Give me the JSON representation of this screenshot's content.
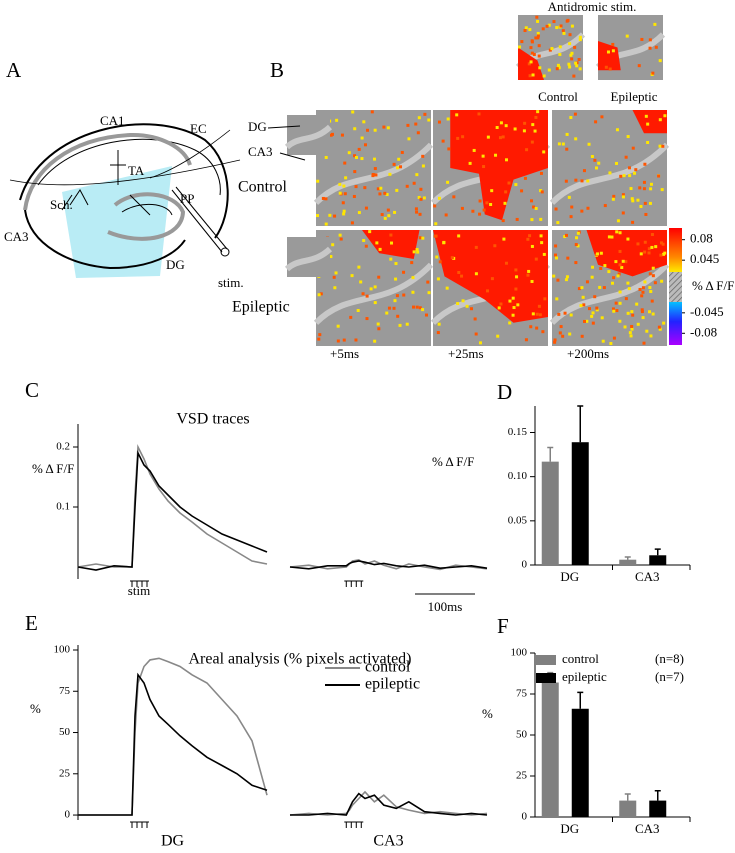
{
  "panel_labels": [
    "A",
    "B",
    "C",
    "D",
    "E",
    "F"
  ],
  "diagram": {
    "labels": [
      "CA1",
      "EC",
      "TA",
      "Sch.",
      "PP",
      "CA3",
      "DG",
      "stim."
    ]
  },
  "imaging": {
    "inset_title": "Antidromic stim.",
    "inset_labels": [
      "Control",
      "Epileptic"
    ],
    "row_labels": [
      "Control",
      "Epileptic"
    ],
    "region_labels": [
      "DG",
      "CA3"
    ],
    "time_labels": [
      "+5ms",
      "+25ms",
      "+200ms"
    ],
    "colorbar": {
      "label": "% Δ F/F",
      "clim": [
        -0.1,
        0.1
      ],
      "ticks": [
        0.08,
        0.045,
        -0.045,
        -0.08
      ]
    }
  },
  "chart_data": [
    {
      "type": "line",
      "title": "VSD traces",
      "ylabel": "% Δ F/F",
      "ylim": [
        -0.02,
        0.23
      ],
      "yticks": [
        0.1,
        0.2
      ],
      "x": [
        -90,
        -60,
        -30,
        0,
        5,
        10,
        20,
        30,
        45,
        60,
        80,
        100,
        125,
        150,
        175,
        200,
        225
      ],
      "xlim": [
        -90,
        225
      ],
      "groups": [
        {
          "series": [
            {
              "color": "#888888",
              "values": [
                0,
                0.005,
                0,
                0,
                0.12,
                0.2,
                0.18,
                0.155,
                0.13,
                0.11,
                0.09,
                0.075,
                0.055,
                0.04,
                0.025,
                0.01,
                0.005
              ]
            },
            {
              "color": "#000000",
              "values": [
                0,
                -0.005,
                0.002,
                0,
                0.1,
                0.19,
                0.17,
                0.16,
                0.135,
                0.12,
                0.1,
                0.085,
                0.07,
                0.055,
                0.045,
                0.035,
                0.025
              ]
            }
          ]
        },
        {
          "series": [
            {
              "color": "#888888",
              "values": [
                0,
                0.003,
                -0.003,
                0,
                0.005,
                0.01,
                0.012,
                0.005,
                0.01,
                0.003,
                -0.003,
                0.005,
                0,
                -0.004,
                0.003,
                0,
                -0.003
              ]
            },
            {
              "color": "#000000",
              "values": [
                0,
                -0.003,
                0.002,
                0.002,
                0.006,
                0.008,
                0.01,
                0.008,
                0.004,
                0.006,
                0.002,
                0,
                0.003,
                -0.002,
                0,
                0.002,
                -0.002
              ]
            }
          ]
        }
      ],
      "stim_label": "stim",
      "scalebar_label": "100ms"
    },
    {
      "type": "bar",
      "ylabel": "% Δ F/F",
      "categories": [
        "DG",
        "CA3"
      ],
      "ylim": [
        0,
        0.18
      ],
      "yticks": [
        0,
        0.05,
        {
          "value": 0.1,
          "label": "0.10"
        },
        0.15
      ],
      "series": [
        {
          "color": "#808080",
          "values": [
            0.117,
            0.006
          ],
          "errors": [
            0.016,
            0.003
          ]
        },
        {
          "color": "#000000",
          "values": [
            0.139,
            0.011
          ],
          "errors": [
            0.041,
            0.007
          ]
        }
      ]
    },
    {
      "type": "line",
      "title": "Areal analysis (% pixels activated)",
      "ylabel": "%",
      "ylim": [
        -3,
        100
      ],
      "yticks": [
        0,
        25,
        50,
        75,
        100
      ],
      "x": [
        -90,
        -60,
        -30,
        0,
        5,
        10,
        20,
        30,
        45,
        60,
        80,
        100,
        125,
        150,
        175,
        200,
        225
      ],
      "xlim": [
        -90,
        225
      ],
      "groups": [
        {
          "label": "DG",
          "series": [
            {
              "name": "control",
              "color": "#888888",
              "values": [
                0,
                0,
                0,
                0,
                50,
                80,
                90,
                94,
                95,
                93,
                90,
                85,
                80,
                70,
                60,
                45,
                12
              ]
            },
            {
              "name": "epileptic",
              "color": "#000000",
              "values": [
                0,
                0,
                0,
                0,
                60,
                85,
                80,
                70,
                60,
                55,
                48,
                42,
                35,
                30,
                25,
                18,
                15
              ]
            }
          ]
        },
        {
          "label": "CA3",
          "series": [
            {
              "color": "#888888",
              "values": [
                0,
                1,
                0,
                1,
                3,
                6,
                10,
                14,
                8,
                12,
                5,
                3,
                1,
                2,
                1,
                0,
                1
              ]
            },
            {
              "color": "#000000",
              "values": [
                0,
                0,
                1,
                0,
                4,
                8,
                13,
                10,
                12,
                6,
                4,
                8,
                2,
                1,
                0,
                1,
                0
              ]
            }
          ]
        }
      ]
    },
    {
      "type": "bar",
      "ylabel": "%",
      "categories": [
        "DG",
        "CA3"
      ],
      "ylim": [
        0,
        100
      ],
      "yticks": [
        0,
        25,
        50,
        75,
        100
      ],
      "series": [
        {
          "name": "control",
          "n_label": "(n=8)",
          "color": "#808080",
          "values": [
            82,
            10
          ],
          "errors": [
            6,
            4
          ]
        },
        {
          "name": "epileptic",
          "n_label": "(n=7)",
          "color": "#000000",
          "values": [
            66,
            10
          ],
          "errors": [
            10,
            6
          ]
        }
      ]
    }
  ]
}
